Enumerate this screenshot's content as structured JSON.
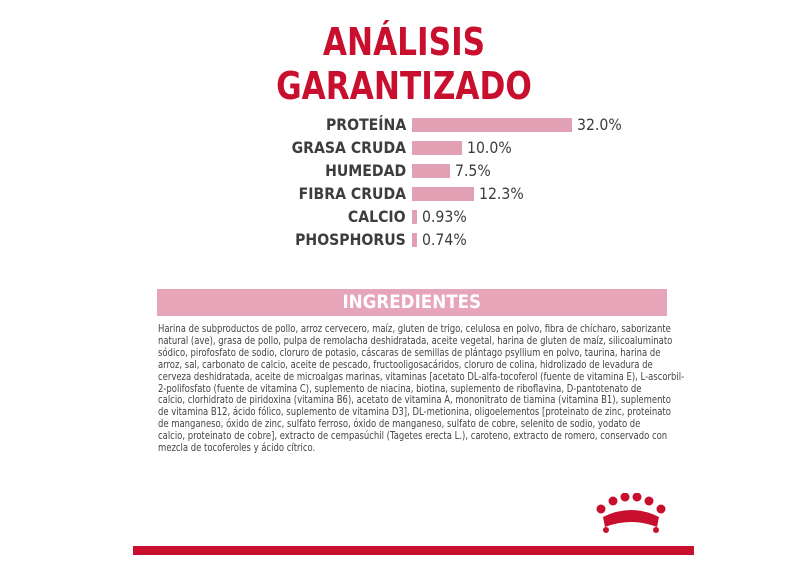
{
  "title_lines": [
    "ANÁLISIS",
    "GARANTIZADO"
  ],
  "chart_data": {
    "type": "bar",
    "orientation": "horizontal",
    "title": "ANÁLISIS GARANTIZADO",
    "categories": [
      "PROTEÍNA",
      "GRASA CRUDA",
      "HUMEDAD",
      "FIBRA CRUDA",
      "CALCIO",
      "PHOSPHORUS"
    ],
    "values": [
      32.0,
      10.0,
      7.5,
      12.3,
      0.93,
      0.74
    ],
    "value_labels": [
      "32.0%",
      "10.0%",
      "7.5%",
      "12.3%",
      "0.93%",
      "0.74%"
    ],
    "unit": "%",
    "bar_color": "#e1a0b4",
    "grid": false
  },
  "ingredients": {
    "heading": "INGREDIENTES",
    "lines": [
      "Harina de subproductos de pollo, arroz cervecero, maíz, gluten de trigo, celulosa en polvo, fibra de chícharo, saborizante",
      "natural (ave), grasa de pollo, pulpa de remolacha deshidratada, aceite vegetal, harina de gluten de maíz, silicoaluminato",
      "sódico, pirofosfato de sodio, cloruro de potasio, cáscaras de semillas de plántago psyllium en polvo, taurina, harina de",
      "arroz, sal, carbonato de calcio, aceite de pescado, fructooligosacáridos, cloruro de colina, hidrolizado de levadura de",
      "cerveza deshidratada, aceite de microalgas marinas, vitaminas [acetato DL-alfa-tocoferol (fuente de vitamina E), L-ascorbil-",
      "2-polifosfato (fuente de vitamina C), suplemento de niacina, biotina, suplemento de riboflavina, D-pantotenato de",
      "calcio, clorhidrato de piridoxina (vitamina B6), acetato de vitamina A, mononitrato de tiamina (vitamina B1), suplemento",
      "de vitamina B12, ácido fólico, suplemento de vitamina D3], DL-metionina, oligoelementos [proteinato de zinc, proteinato",
      "de manganeso, óxido de zinc, sulfato ferroso, óxido de manganeso, sulfato de cobre, selenito de sodio, yodato de",
      "calcio, proteinato de cobre], extracto de cempasúchil (Tagetes erecta L.), caroteno, extracto de romero, conservado con",
      "mezcla de tocoferoles y ácido cítrico."
    ]
  },
  "colors": {
    "brand_red": "#c8102e",
    "pink": "#e6a5b9",
    "text": "#3d3d3d"
  },
  "logo": {
    "name": "royal-canin-crown-icon"
  }
}
